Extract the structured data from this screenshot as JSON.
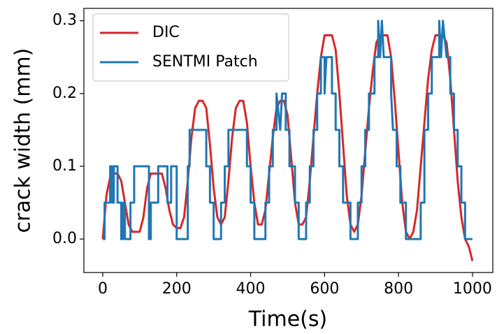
{
  "chart_data": {
    "type": "line",
    "xlabel": "Time(s)",
    "ylabel": "crack width (mm)",
    "xlim": [
      -51,
      1055
    ],
    "ylim": [
      -0.046,
      0.317
    ],
    "xticks": [
      0,
      200,
      400,
      600,
      800,
      1000
    ],
    "yticks": [
      {
        "value": 0,
        "label": "0.0"
      },
      {
        "value": 0.1,
        "label": "0.1"
      },
      {
        "value": 0.2,
        "label": "0.2"
      },
      {
        "value": 0.3,
        "label": "0.3"
      }
    ],
    "grid": false,
    "legend": "upper left",
    "series": [
      {
        "name": "DIC",
        "color": "#d62728",
        "x": [
          0,
          10,
          20,
          30,
          40,
          50,
          60,
          70,
          80,
          90,
          100,
          110,
          120,
          130,
          140,
          150,
          160,
          170,
          180,
          190,
          200,
          210,
          220,
          230,
          240,
          250,
          260,
          270,
          280,
          290,
          300,
          310,
          320,
          330,
          340,
          350,
          360,
          370,
          380,
          390,
          400,
          410,
          420,
          430,
          440,
          450,
          460,
          470,
          480,
          490,
          500,
          510,
          520,
          530,
          540,
          550,
          560,
          570,
          580,
          590,
          600,
          610,
          620,
          630,
          640,
          650,
          660,
          670,
          680,
          690,
          700,
          710,
          720,
          730,
          740,
          750,
          760,
          770,
          780,
          790,
          800,
          810,
          820,
          830,
          840,
          850,
          860,
          870,
          880,
          890,
          900,
          910,
          920,
          930,
          940,
          950,
          960,
          970,
          980,
          990,
          1000
        ],
        "values": [
          0,
          0.06,
          0.085,
          0.09,
          0.09,
          0.08,
          0.05,
          0.02,
          0.01,
          0.01,
          0.01,
          0.03,
          0.07,
          0.09,
          0.09,
          0.09,
          0.09,
          0.07,
          0.04,
          0.02,
          0.015,
          0.015,
          0.03,
          0.08,
          0.14,
          0.18,
          0.19,
          0.19,
          0.18,
          0.13,
          0.07,
          0.03,
          0.02,
          0.03,
          0.08,
          0.14,
          0.18,
          0.19,
          0.19,
          0.16,
          0.1,
          0.05,
          0.02,
          0.02,
          0.04,
          0.09,
          0.14,
          0.18,
          0.19,
          0.19,
          0.17,
          0.11,
          0.05,
          0.02,
          0.02,
          0.03,
          0.08,
          0.14,
          0.2,
          0.25,
          0.28,
          0.28,
          0.28,
          0.26,
          0.2,
          0.13,
          0.06,
          0.02,
          0.01,
          0.02,
          0.06,
          0.12,
          0.18,
          0.23,
          0.27,
          0.28,
          0.28,
          0.28,
          0.25,
          0.19,
          0.12,
          0.05,
          0.01,
          0,
          0.01,
          0.04,
          0.1,
          0.16,
          0.22,
          0.26,
          0.28,
          0.28,
          0.28,
          0.27,
          0.22,
          0.15,
          0.08,
          0.03,
          0,
          -0.01,
          -0.03
        ]
      },
      {
        "name": "SENTMI Patch",
        "color": "#1f77b4",
        "x": [
          0,
          5,
          5,
          20,
          20,
          25,
          25,
          30,
          30,
          40,
          40,
          50,
          50,
          55,
          55,
          60,
          60,
          75,
          75,
          85,
          85,
          125,
          125,
          130,
          130,
          150,
          150,
          175,
          175,
          185,
          185,
          200,
          200,
          230,
          230,
          235,
          235,
          280,
          280,
          290,
          290,
          300,
          300,
          320,
          320,
          330,
          330,
          340,
          340,
          390,
          390,
          400,
          400,
          410,
          410,
          440,
          440,
          450,
          450,
          460,
          460,
          470,
          470,
          480,
          485,
          495,
          495,
          505,
          505,
          520,
          520,
          530,
          530,
          550,
          550,
          560,
          560,
          570,
          570,
          580,
          580,
          590,
          590,
          600,
          600,
          605,
          620,
          620,
          630,
          630,
          640,
          640,
          650,
          650,
          670,
          670,
          690,
          690,
          700,
          700,
          710,
          710,
          720,
          720,
          735,
          735,
          745,
          745,
          750,
          755,
          760,
          780,
          780,
          785,
          795,
          795,
          805,
          805,
          820,
          820,
          860,
          860,
          870,
          870,
          880,
          880,
          890,
          890,
          910,
          910,
          915,
          920,
          930,
          940,
          940,
          950,
          950,
          960,
          960,
          970,
          970,
          980,
          980,
          1000
        ],
        "values": [
          0,
          0,
          0.05,
          0.05,
          0.1,
          0.1,
          0.05,
          0.05,
          0.1,
          0.1,
          0.05,
          0.05,
          0,
          0,
          0.05,
          0.05,
          0,
          0,
          0.05,
          0.05,
          0.1,
          0.1,
          0,
          0,
          0.05,
          0.05,
          0.1,
          0.1,
          0.05,
          0.05,
          0.1,
          0.1,
          0,
          0,
          0.1,
          0.1,
          0.15,
          0.15,
          0.1,
          0.1,
          0.05,
          0.05,
          0,
          0,
          0.05,
          0.05,
          0.1,
          0.1,
          0.15,
          0.15,
          0.1,
          0.1,
          0.05,
          0.05,
          0,
          0,
          0.05,
          0.05,
          0.1,
          0.1,
          0.15,
          0.15,
          0.2,
          0.15,
          0.2,
          0.2,
          0.15,
          0.15,
          0.1,
          0.1,
          0.05,
          0.05,
          0,
          0,
          0.05,
          0.05,
          0.1,
          0.1,
          0.15,
          0.15,
          0.2,
          0.2,
          0.25,
          0.25,
          0.2,
          0.25,
          0.25,
          0.2,
          0.2,
          0.15,
          0.15,
          0.1,
          0.1,
          0.05,
          0.05,
          0,
          0,
          0.05,
          0.05,
          0.1,
          0.1,
          0.15,
          0.15,
          0.2,
          0.2,
          0.25,
          0.25,
          0.3,
          0.25,
          0.3,
          0.25,
          0.25,
          0.2,
          0.15,
          0.15,
          0.1,
          0.1,
          0.05,
          0.05,
          0,
          0,
          0.05,
          0.05,
          0.15,
          0.15,
          0.2,
          0.2,
          0.25,
          0.25,
          0.3,
          0.25,
          0.3,
          0.25,
          0.25,
          0.2,
          0.2,
          0.15,
          0.15,
          0.1,
          0.1,
          0.05,
          0.05,
          0,
          0
        ]
      }
    ]
  }
}
